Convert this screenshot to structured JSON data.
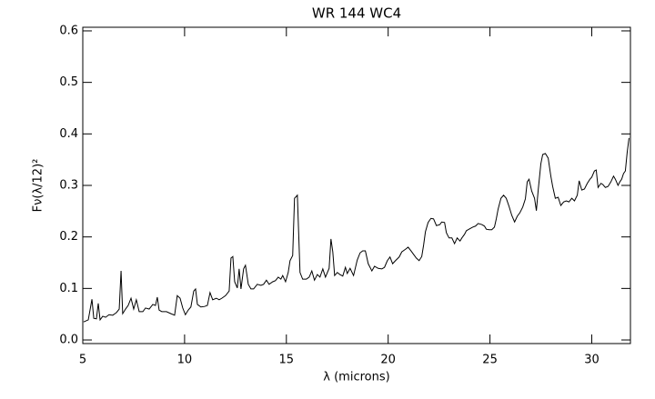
{
  "chart_data": {
    "type": "line",
    "title": "WR 144 WC4",
    "xlabel": "λ (microns)",
    "ylabel": "Fν(λ/12)²",
    "color": "#000000",
    "xlim": [
      5,
      31.9
    ],
    "ylim": [
      -0.007,
      0.607
    ],
    "xticks": [
      5,
      10,
      15,
      20,
      25,
      30
    ],
    "yticks": [
      {
        "value": 0,
        "label": "0.0"
      },
      0.1,
      0.2,
      0.3,
      0.4,
      0.5,
      0.6
    ],
    "x": [
      5.04,
      5.27,
      5.45,
      5.54,
      5.67,
      5.76,
      5.85,
      5.98,
      6.12,
      6.29,
      6.47,
      6.65,
      6.79,
      6.88,
      6.96,
      7.1,
      7.23,
      7.37,
      7.5,
      7.63,
      7.77,
      7.95,
      8.08,
      8.26,
      8.44,
      8.57,
      8.66,
      8.75,
      8.88,
      9.11,
      9.33,
      9.51,
      9.64,
      9.78,
      9.91,
      10.04,
      10.18,
      10.31,
      10.45,
      10.54,
      10.63,
      10.8,
      10.98,
      11.12,
      11.25,
      11.38,
      11.56,
      11.7,
      11.83,
      12.01,
      12.19,
      12.28,
      12.37,
      12.46,
      12.59,
      12.68,
      12.77,
      12.9,
      12.99,
      13.13,
      13.26,
      13.39,
      13.57,
      13.75,
      13.88,
      14.02,
      14.15,
      14.33,
      14.46,
      14.6,
      14.73,
      14.82,
      14.96,
      15.09,
      15.18,
      15.31,
      15.4,
      15.54,
      15.67,
      15.8,
      15.98,
      16.12,
      16.25,
      16.38,
      16.52,
      16.65,
      16.79,
      16.92,
      17.1,
      17.19,
      17.28,
      17.37,
      17.5,
      17.63,
      17.77,
      17.9,
      17.99,
      18.13,
      18.3,
      18.48,
      18.62,
      18.75,
      18.88,
      19.02,
      19.2,
      19.33,
      19.51,
      19.69,
      19.82,
      19.96,
      20.09,
      20.22,
      20.36,
      20.54,
      20.67,
      20.85,
      20.98,
      21.12,
      21.25,
      21.38,
      21.52,
      21.65,
      21.74,
      21.83,
      21.96,
      22.1,
      22.23,
      22.37,
      22.54,
      22.63,
      22.77,
      22.86,
      22.99,
      23.13,
      23.26,
      23.39,
      23.53,
      23.62,
      23.75,
      23.84,
      23.97,
      24.15,
      24.29,
      24.42,
      24.6,
      24.73,
      24.82,
      24.96,
      25.09,
      25.22,
      25.31,
      25.4,
      25.54,
      25.67,
      25.8,
      25.94,
      26.07,
      26.21,
      26.34,
      26.47,
      26.61,
      26.74,
      26.83,
      26.92,
      27.05,
      27.19,
      27.28,
      27.37,
      27.5,
      27.59,
      27.72,
      27.86,
      27.99,
      28.08,
      28.21,
      28.35,
      28.48,
      28.62,
      28.75,
      28.88,
      29.02,
      29.15,
      29.29,
      29.38,
      29.51,
      29.64,
      29.78,
      29.91,
      30.0,
      30.13,
      30.22,
      30.31,
      30.45,
      30.54,
      30.67,
      30.8,
      30.94,
      31.07,
      31.16,
      31.29,
      31.38,
      31.47,
      31.56,
      31.65,
      31.74,
      31.83
    ],
    "values": [
      0.035,
      0.039,
      0.079,
      0.042,
      0.041,
      0.071,
      0.039,
      0.046,
      0.044,
      0.049,
      0.048,
      0.053,
      0.06,
      0.134,
      0.051,
      0.06,
      0.067,
      0.081,
      0.06,
      0.078,
      0.055,
      0.055,
      0.062,
      0.06,
      0.069,
      0.067,
      0.083,
      0.058,
      0.055,
      0.055,
      0.051,
      0.048,
      0.086,
      0.081,
      0.062,
      0.049,
      0.058,
      0.064,
      0.095,
      0.099,
      0.069,
      0.064,
      0.065,
      0.067,
      0.092,
      0.078,
      0.081,
      0.078,
      0.081,
      0.086,
      0.095,
      0.159,
      0.162,
      0.113,
      0.101,
      0.138,
      0.099,
      0.138,
      0.145,
      0.108,
      0.099,
      0.099,
      0.108,
      0.106,
      0.108,
      0.116,
      0.108,
      0.113,
      0.115,
      0.122,
      0.118,
      0.125,
      0.113,
      0.131,
      0.154,
      0.164,
      0.275,
      0.281,
      0.131,
      0.118,
      0.118,
      0.122,
      0.134,
      0.116,
      0.127,
      0.122,
      0.138,
      0.122,
      0.139,
      0.196,
      0.171,
      0.125,
      0.131,
      0.127,
      0.124,
      0.141,
      0.129,
      0.139,
      0.125,
      0.155,
      0.169,
      0.173,
      0.173,
      0.148,
      0.134,
      0.143,
      0.139,
      0.138,
      0.141,
      0.154,
      0.161,
      0.148,
      0.154,
      0.161,
      0.171,
      0.176,
      0.18,
      0.173,
      0.166,
      0.159,
      0.154,
      0.162,
      0.184,
      0.21,
      0.228,
      0.236,
      0.235,
      0.222,
      0.224,
      0.229,
      0.228,
      0.208,
      0.198,
      0.198,
      0.187,
      0.198,
      0.192,
      0.198,
      0.205,
      0.212,
      0.215,
      0.219,
      0.221,
      0.226,
      0.224,
      0.221,
      0.215,
      0.214,
      0.214,
      0.219,
      0.235,
      0.254,
      0.275,
      0.281,
      0.275,
      0.259,
      0.242,
      0.229,
      0.24,
      0.247,
      0.258,
      0.274,
      0.307,
      0.312,
      0.289,
      0.275,
      0.251,
      0.291,
      0.342,
      0.36,
      0.362,
      0.353,
      0.318,
      0.298,
      0.275,
      0.277,
      0.261,
      0.268,
      0.27,
      0.268,
      0.275,
      0.27,
      0.281,
      0.309,
      0.291,
      0.293,
      0.304,
      0.312,
      0.316,
      0.328,
      0.33,
      0.296,
      0.304,
      0.302,
      0.296,
      0.298,
      0.307,
      0.318,
      0.312,
      0.3,
      0.307,
      0.312,
      0.323,
      0.328,
      0.364,
      0.392
    ]
  }
}
